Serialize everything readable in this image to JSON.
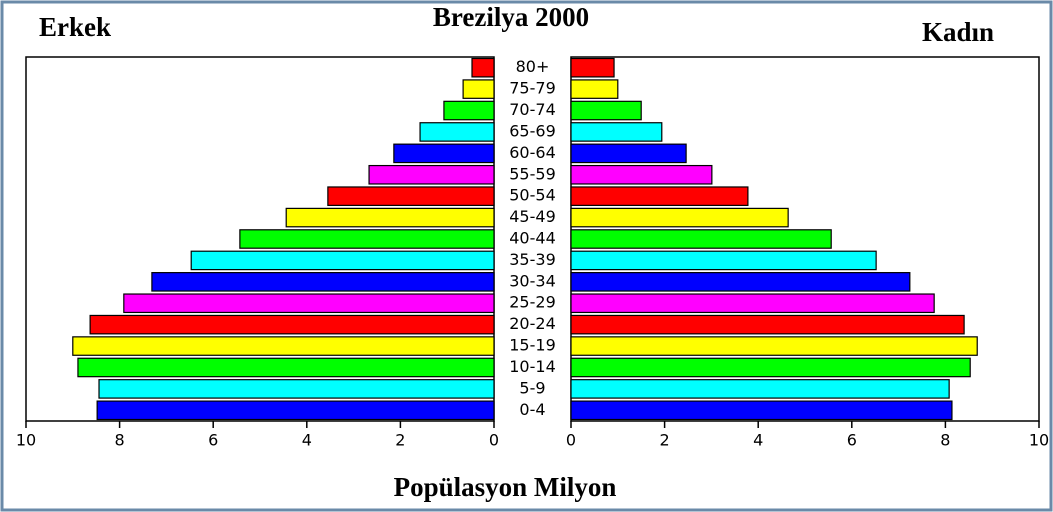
{
  "chart_data": {
    "type": "pyramid",
    "title": "Brezilya 2000",
    "xlabel": "Popülasyon Milyon",
    "categories": [
      "0-4",
      "5-9",
      "10-14",
      "15-19",
      "20-24",
      "25-29",
      "30-34",
      "35-39",
      "40-44",
      "45-49",
      "50-54",
      "55-59",
      "60-64",
      "65-69",
      "70-74",
      "75-79",
      "80+"
    ],
    "colors": [
      "#0000ff",
      "#00ffff",
      "#00ff00",
      "#ffff00",
      "#ff0000",
      "#ff00ff",
      "#0000ff",
      "#00ffff",
      "#00ff00",
      "#ffff00",
      "#ff0000",
      "#ff00ff",
      "#0000ff",
      "#00ffff",
      "#00ff00",
      "#ffff00",
      "#ff0000"
    ],
    "series": [
      {
        "name": "Erkek",
        "side": "left",
        "values": [
          8.48,
          8.44,
          8.89,
          9.0,
          8.63,
          7.91,
          7.31,
          6.47,
          5.43,
          4.44,
          3.55,
          2.67,
          2.14,
          1.58,
          1.07,
          0.66,
          0.47
        ]
      },
      {
        "name": "Kadın",
        "side": "right",
        "values": [
          8.14,
          8.08,
          8.53,
          8.68,
          8.4,
          7.76,
          7.24,
          6.52,
          5.56,
          4.64,
          3.78,
          3.01,
          2.46,
          1.94,
          1.5,
          1.0,
          0.92
        ]
      }
    ],
    "xlim": [
      0,
      10
    ],
    "xticks": [
      0,
      2,
      4,
      6,
      8,
      10
    ]
  }
}
